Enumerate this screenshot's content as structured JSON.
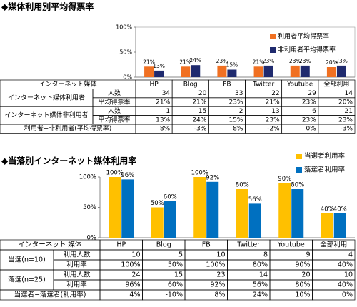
{
  "chart_data": [
    {
      "type": "bar",
      "title": "◆媒体利用別平均得票率",
      "categories": [
        "HP",
        "Blog",
        "FB",
        "Twitter",
        "Youtube",
        "全部利用"
      ],
      "series": [
        {
          "name": "利用者平均得票率",
          "color": "#f07022",
          "values": [
            21,
            21,
            23,
            21,
            23,
            20
          ],
          "value_labels": [
            "21%",
            "21%",
            "23%",
            "21%",
            "23%",
            "20%"
          ]
        },
        {
          "name": "非利用者平均得票率",
          "color": "#1f2a6e",
          "values": [
            13,
            24,
            15,
            23,
            23,
            23
          ],
          "value_labels": [
            "13%",
            "24%",
            "15%",
            "23%",
            "23%",
            "23%"
          ]
        }
      ],
      "ylim": [
        0,
        100
      ],
      "yticks": [
        {
          "value": 0,
          "label": "0%"
        },
        {
          "value": 50,
          "label": "50%"
        },
        {
          "value": 100,
          "label": "100%"
        }
      ],
      "legend": "upper right",
      "table": {
        "header_label": "インターネット媒体",
        "groups": [
          {
            "label": "インターネット媒体利用者",
            "count_label": "人数",
            "counts": [
              34,
              20,
              33,
              22,
              29,
              14
            ],
            "rate_label": "平均得票率"
          },
          {
            "label": "インターネット媒体非利用者",
            "count_label": "人数",
            "counts": [
              1,
              15,
              2,
              13,
              6,
              21
            ],
            "rate_label": "平均得票率"
          }
        ],
        "diff": {
          "label": "利用者−非利用者(平均得票率)",
          "values": [
            "8%",
            "-3%",
            "8%",
            "-2%",
            "0%",
            "-3%"
          ]
        }
      }
    },
    {
      "type": "bar",
      "title": "◆当落別インターネット媒体利用率",
      "categories": [
        "HP",
        "Blog",
        "FB",
        "Twitter",
        "Youtube",
        "全部利用"
      ],
      "series": [
        {
          "name": "当選者利用率",
          "color": "#ffc000",
          "values": [
            100,
            50,
            100,
            80,
            90,
            40
          ],
          "value_labels": [
            "100%",
            "50%",
            "100%",
            "80%",
            "90%",
            "40%"
          ]
        },
        {
          "name": "落選者利用率",
          "color": "#0070c0",
          "values": [
            96,
            60,
            92,
            56,
            80,
            40
          ],
          "value_labels": [
            "96%",
            "60%",
            "92%",
            "56%",
            "80%",
            "40%"
          ]
        }
      ],
      "ylim": [
        0,
        100
      ],
      "yticks": [
        {
          "value": 0,
          "label": "0%"
        },
        {
          "value": 50,
          "label": "50%"
        },
        {
          "value": 100,
          "label": "100%"
        }
      ],
      "legend": "upper right",
      "table": {
        "header_label": "インターネット 媒体",
        "groups": [
          {
            "label": "当選(n=10)",
            "count_label": "利用人数",
            "counts": [
              10,
              5,
              10,
              8,
              9,
              4
            ],
            "rate_label": "利用率"
          },
          {
            "label": "落選(n=25)",
            "count_label": "利用人数",
            "counts": [
              24,
              15,
              23,
              14,
              20,
              10
            ],
            "rate_label": "利用率"
          }
        ],
        "diff": {
          "label": "当選者−落選者(利用率)",
          "values": [
            "4%",
            "-10%",
            "8%",
            "24%",
            "10%",
            "0%"
          ]
        }
      }
    }
  ]
}
